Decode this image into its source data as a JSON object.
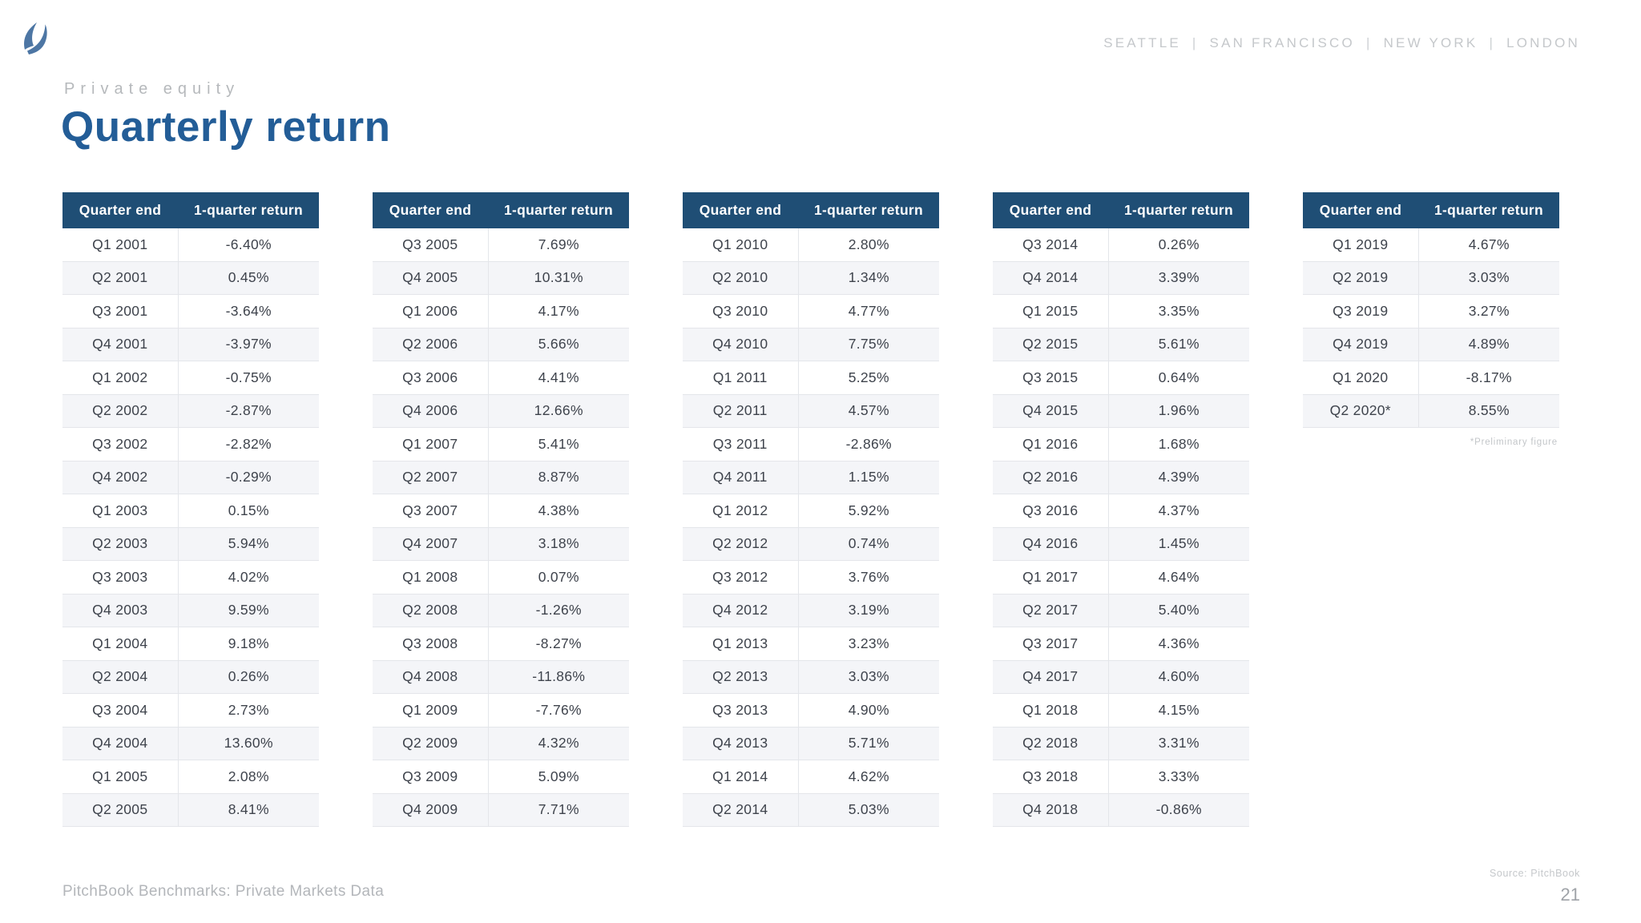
{
  "header": {
    "offices": [
      "SEATTLE",
      "SAN FRANCISCO",
      "NEW YORK",
      "LONDON"
    ],
    "separator": "|"
  },
  "eyebrow": "Private equity",
  "title": "Quarterly return",
  "table_template": {
    "columns": [
      "Quarter end",
      "1-quarter return"
    ]
  },
  "tables": [
    {
      "rows": [
        [
          "Q1 2001",
          "-6.40%"
        ],
        [
          "Q2 2001",
          "0.45%"
        ],
        [
          "Q3 2001",
          "-3.64%"
        ],
        [
          "Q4 2001",
          "-3.97%"
        ],
        [
          "Q1 2002",
          "-0.75%"
        ],
        [
          "Q2 2002",
          "-2.87%"
        ],
        [
          "Q3 2002",
          "-2.82%"
        ],
        [
          "Q4 2002",
          "-0.29%"
        ],
        [
          "Q1 2003",
          "0.15%"
        ],
        [
          "Q2 2003",
          "5.94%"
        ],
        [
          "Q3 2003",
          "4.02%"
        ],
        [
          "Q4 2003",
          "9.59%"
        ],
        [
          "Q1 2004",
          "9.18%"
        ],
        [
          "Q2 2004",
          "0.26%"
        ],
        [
          "Q3 2004",
          "2.73%"
        ],
        [
          "Q4 2004",
          "13.60%"
        ],
        [
          "Q1 2005",
          "2.08%"
        ],
        [
          "Q2 2005",
          "8.41%"
        ]
      ]
    },
    {
      "rows": [
        [
          "Q3 2005",
          "7.69%"
        ],
        [
          "Q4 2005",
          "10.31%"
        ],
        [
          "Q1 2006",
          "4.17%"
        ],
        [
          "Q2 2006",
          "5.66%"
        ],
        [
          "Q3 2006",
          "4.41%"
        ],
        [
          "Q4 2006",
          "12.66%"
        ],
        [
          "Q1 2007",
          "5.41%"
        ],
        [
          "Q2 2007",
          "8.87%"
        ],
        [
          "Q3 2007",
          "4.38%"
        ],
        [
          "Q4 2007",
          "3.18%"
        ],
        [
          "Q1 2008",
          "0.07%"
        ],
        [
          "Q2 2008",
          "-1.26%"
        ],
        [
          "Q3 2008",
          "-8.27%"
        ],
        [
          "Q4 2008",
          "-11.86%"
        ],
        [
          "Q1 2009",
          "-7.76%"
        ],
        [
          "Q2 2009",
          "4.32%"
        ],
        [
          "Q3 2009",
          "5.09%"
        ],
        [
          "Q4 2009",
          "7.71%"
        ]
      ]
    },
    {
      "rows": [
        [
          "Q1 2010",
          "2.80%"
        ],
        [
          "Q2 2010",
          "1.34%"
        ],
        [
          "Q3 2010",
          "4.77%"
        ],
        [
          "Q4 2010",
          "7.75%"
        ],
        [
          "Q1 2011",
          "5.25%"
        ],
        [
          "Q2 2011",
          "4.57%"
        ],
        [
          "Q3 2011",
          "-2.86%"
        ],
        [
          "Q4 2011",
          "1.15%"
        ],
        [
          "Q1 2012",
          "5.92%"
        ],
        [
          "Q2 2012",
          "0.74%"
        ],
        [
          "Q3 2012",
          "3.76%"
        ],
        [
          "Q4 2012",
          "3.19%"
        ],
        [
          "Q1 2013",
          "3.23%"
        ],
        [
          "Q2 2013",
          "3.03%"
        ],
        [
          "Q3 2013",
          "4.90%"
        ],
        [
          "Q4 2013",
          "5.71%"
        ],
        [
          "Q1 2014",
          "4.62%"
        ],
        [
          "Q2 2014",
          "5.03%"
        ]
      ]
    },
    {
      "rows": [
        [
          "Q3 2014",
          "0.26%"
        ],
        [
          "Q4 2014",
          "3.39%"
        ],
        [
          "Q1 2015",
          "3.35%"
        ],
        [
          "Q2 2015",
          "5.61%"
        ],
        [
          "Q3 2015",
          "0.64%"
        ],
        [
          "Q4 2015",
          "1.96%"
        ],
        [
          "Q1 2016",
          "1.68%"
        ],
        [
          "Q2 2016",
          "4.39%"
        ],
        [
          "Q3 2016",
          "4.37%"
        ],
        [
          "Q4 2016",
          "1.45%"
        ],
        [
          "Q1 2017",
          "4.64%"
        ],
        [
          "Q2 2017",
          "5.40%"
        ],
        [
          "Q3 2017",
          "4.36%"
        ],
        [
          "Q4 2017",
          "4.60%"
        ],
        [
          "Q1 2018",
          "4.15%"
        ],
        [
          "Q2 2018",
          "3.31%"
        ],
        [
          "Q3 2018",
          "3.33%"
        ],
        [
          "Q4 2018",
          "-0.86%"
        ]
      ]
    },
    {
      "rows": [
        [
          "Q1 2019",
          "4.67%"
        ],
        [
          "Q2 2019",
          "3.03%"
        ],
        [
          "Q3 2019",
          "3.27%"
        ],
        [
          "Q4 2019",
          "4.89%"
        ],
        [
          "Q1 2020",
          "-8.17%"
        ],
        [
          "Q2 2020*",
          "8.55%"
        ]
      ],
      "footnote": "*Preliminary figure"
    }
  ],
  "footer": {
    "left": "PitchBook Benchmarks: Private Markets Data",
    "source": "Source: PitchBook",
    "page": "21"
  },
  "colors": {
    "header_bg": "#1f4e75",
    "title": "#235d97",
    "stripe": "#f4f5f8",
    "logo": "#4d76a4"
  }
}
